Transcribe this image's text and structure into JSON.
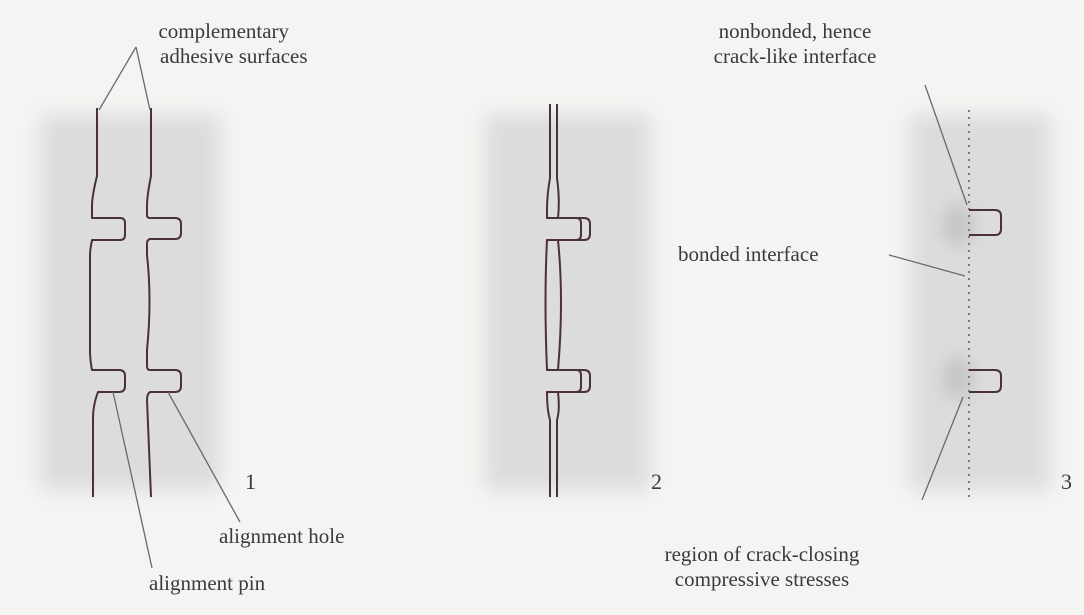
{
  "labels": {
    "complementary_surfaces": [
      "complementary",
      "adhesive surfaces"
    ],
    "alignment_hole": "alignment hole",
    "alignment_pin": "alignment pin",
    "nonbonded_interface": [
      "nonbonded, hence",
      "crack-like interface"
    ],
    "bonded_interface": "bonded interface",
    "crack_closing_region": [
      "region of crack-closing",
      "compressive stresses"
    ]
  },
  "panel_numbers": [
    "1",
    "2",
    "3"
  ],
  "colors": {
    "background": "#f4f4f2",
    "shadow": "#dcdcda",
    "outline": "#4a3038",
    "text": "#3a3a3a",
    "leader": "#6a6a6a",
    "dotted": "#7a7a7a"
  }
}
